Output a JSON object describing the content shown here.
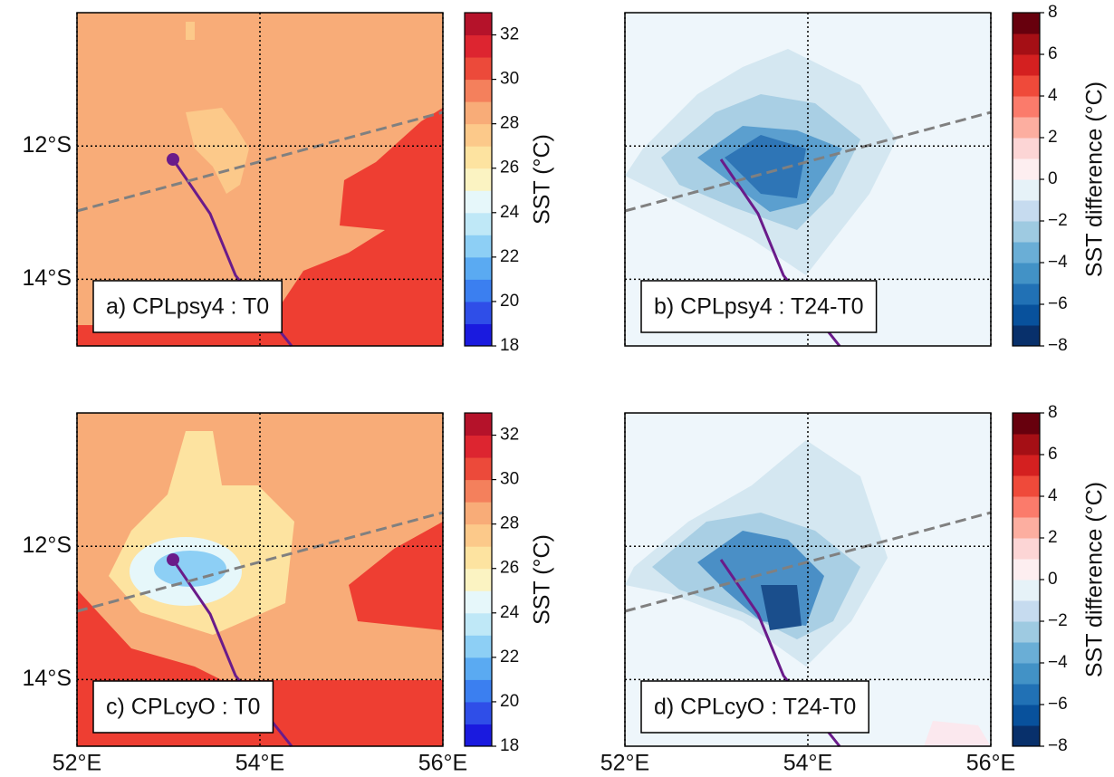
{
  "chart_data": [
    {
      "type": "heatmap",
      "title": "a) CPLpsy4 : T0",
      "xlim": [
        52,
        56
      ],
      "ylim": [
        -15,
        -10
      ],
      "xticks": [
        {
          "value": 52,
          "label": "52°E"
        },
        {
          "value": 54,
          "label": "54°E"
        },
        {
          "value": 56,
          "label": "56°E"
        }
      ],
      "yticks": [
        {
          "value": -14,
          "label": "14°S"
        },
        {
          "value": -12,
          "label": "12°S"
        }
      ],
      "colorbar": {
        "label": "SST (°C)",
        "lim": [
          18,
          33
        ],
        "ticks": [
          18,
          20,
          22,
          24,
          26,
          28,
          30,
          32
        ]
      }
    },
    {
      "type": "heatmap",
      "title": "b) CPLpsy4 : T24-T0",
      "xlim": [
        52,
        56
      ],
      "ylim": [
        -15,
        -10
      ],
      "xticks": [
        {
          "value": 52,
          "label": "52°E"
        },
        {
          "value": 54,
          "label": "54°E"
        },
        {
          "value": 56,
          "label": "56°E"
        }
      ],
      "yticks": [
        {
          "value": -14,
          "label": "14°S"
        },
        {
          "value": -12,
          "label": "12°S"
        }
      ],
      "colorbar": {
        "label": "SST difference (°C)",
        "lim": [
          -8,
          8
        ],
        "ticks": [
          {
            "value": -8,
            "label": "−8"
          },
          {
            "value": -6,
            "label": "−6"
          },
          {
            "value": -4,
            "label": "−4"
          },
          {
            "value": -2,
            "label": "−2"
          },
          0,
          2,
          4,
          6,
          8
        ]
      }
    },
    {
      "type": "heatmap",
      "title": "c) CPLcyO : T0",
      "xlim": [
        52,
        56
      ],
      "ylim": [
        -15,
        -10
      ],
      "xticks": [
        {
          "value": 52,
          "label": "52°E"
        },
        {
          "value": 54,
          "label": "54°E"
        },
        {
          "value": 56,
          "label": "56°E"
        }
      ],
      "yticks": [
        {
          "value": -14,
          "label": "14°S"
        },
        {
          "value": -12,
          "label": "12°S"
        }
      ],
      "colorbar": {
        "label": "SST (°C)",
        "lim": [
          18,
          33
        ],
        "ticks": [
          18,
          20,
          22,
          24,
          26,
          28,
          30,
          32
        ]
      }
    },
    {
      "type": "heatmap",
      "title": "d) CPLcyO : T24-T0",
      "xlim": [
        52,
        56
      ],
      "ylim": [
        -15,
        -10
      ],
      "xticks": [
        {
          "value": 52,
          "label": "52°E"
        },
        {
          "value": 54,
          "label": "54°E"
        },
        {
          "value": 56,
          "label": "56°E"
        }
      ],
      "yticks": [
        {
          "value": -14,
          "label": "14°S"
        },
        {
          "value": -12,
          "label": "12°S"
        }
      ],
      "colorbar": {
        "label": "SST difference (°C)",
        "lim": [
          -8,
          8
        ],
        "ticks": [
          {
            "value": -8,
            "label": "−8"
          },
          {
            "value": -6,
            "label": "−6"
          },
          {
            "value": -4,
            "label": "−4"
          },
          {
            "value": -2,
            "label": "−2"
          },
          0,
          2,
          4,
          6,
          8
        ]
      }
    }
  ]
}
